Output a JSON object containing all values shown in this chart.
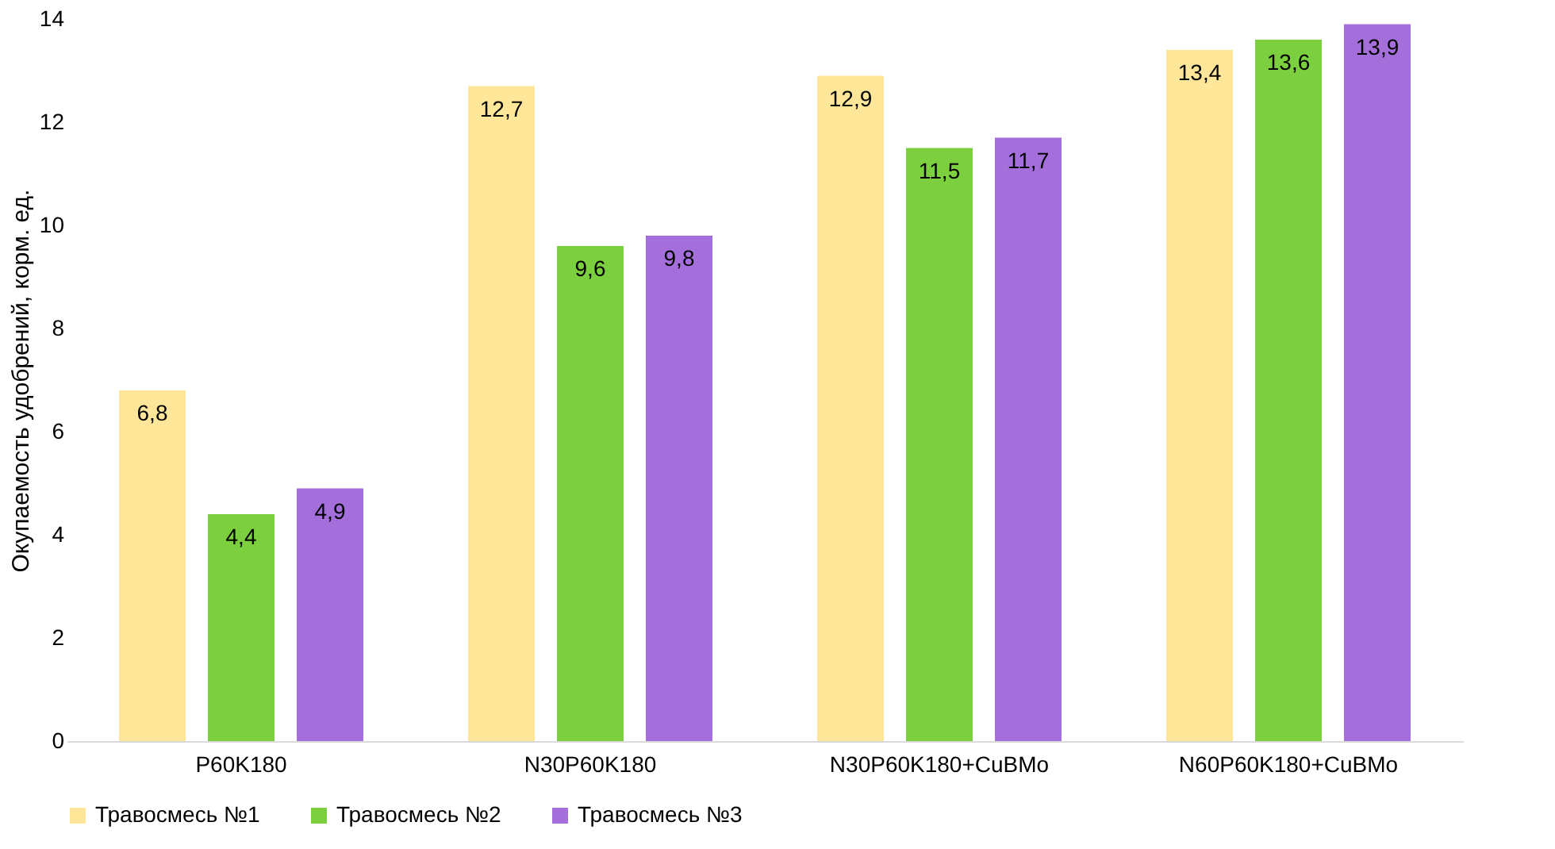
{
  "chart_data": {
    "type": "bar",
    "ylabel": "Окупаемость удобрений, корм. ед.",
    "categories": [
      "P60K180",
      "N30P60K180",
      "N30P60K180+CuBMo",
      "N60P60K180+CuBMo"
    ],
    "series": [
      {
        "name": "Травосмесь №1",
        "color": "#ffe699",
        "values": [
          6.8,
          12.7,
          12.9,
          13.4
        ],
        "value_labels": [
          "6,8",
          "12,7",
          "12,9",
          "13,4"
        ]
      },
      {
        "name": "Травосмесь №2",
        "color": "#7ccf3e",
        "values": [
          4.4,
          9.6,
          11.5,
          13.6
        ],
        "value_labels": [
          "4,4",
          "9,6",
          "11,5",
          "13,6"
        ]
      },
      {
        "name": "Травосмесь №3",
        "color": "#a56fdb",
        "values": [
          4.9,
          9.8,
          11.7,
          13.9
        ],
        "value_labels": [
          "4,9",
          "9,8",
          "11,7",
          "13,9"
        ]
      }
    ],
    "ylim": [
      0,
      14
    ],
    "yticks": [
      0,
      2,
      4,
      6,
      8,
      10,
      12,
      14
    ],
    "grid": false,
    "legend": "bottom"
  }
}
